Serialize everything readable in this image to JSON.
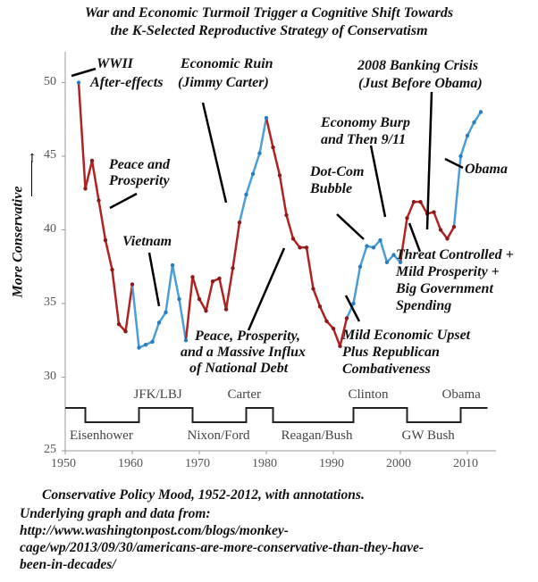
{
  "title_lines": [
    "War and Economic Turmoil Trigger a Cognitive Shift Towards",
    "the K-Selected Reproductive Strategy of Conservatism"
  ],
  "chart_data": {
    "type": "line",
    "title": "War and Economic Turmoil Trigger a Cognitive Shift Towards the K-Selected Reproductive Strategy of Conservatism",
    "ylabel": "More Conservative",
    "xlabel": "",
    "xlim": [
      1950,
      2013
    ],
    "ylim": [
      25,
      52
    ],
    "x_ticks": [
      1950,
      1960,
      1970,
      1980,
      1990,
      2000,
      2010
    ],
    "y_ticks": [
      25,
      30,
      35,
      40,
      45,
      50
    ],
    "grid": false,
    "x": [
      1952,
      1953,
      1954,
      1955,
      1956,
      1957,
      1958,
      1959,
      1960,
      1961,
      1962,
      1963,
      1964,
      1965,
      1966,
      1967,
      1968,
      1969,
      1970,
      1971,
      1972,
      1973,
      1974,
      1975,
      1976,
      1977,
      1978,
      1979,
      1980,
      1981,
      1982,
      1983,
      1984,
      1985,
      1986,
      1987,
      1988,
      1989,
      1990,
      1991,
      1992,
      1993,
      1994,
      1995,
      1996,
      1997,
      1998,
      1999,
      2000,
      2001,
      2002,
      2003,
      2004,
      2005,
      2006,
      2007,
      2008,
      2009,
      2010,
      2011,
      2012
    ],
    "series": [
      {
        "values": [
          50,
          42.8,
          44.7,
          42,
          39.3,
          37.3,
          33.6,
          33.1,
          36.3,
          32,
          32.2,
          32.4,
          33.7,
          34.4,
          37.6,
          35.3,
          32.5,
          36.8,
          35.3,
          34.5,
          36.5,
          36.7,
          34.6,
          37.4,
          40.5,
          42.4,
          43.8,
          45.2,
          47.6,
          45.6,
          43.7,
          41,
          39.4,
          38.8,
          38.8,
          36,
          34.8,
          33.8,
          33.3,
          32.1,
          34,
          35,
          37.5,
          38.9,
          38.8,
          39.3,
          37.8,
          38.3,
          37.8,
          40.8,
          41.9,
          41.9,
          41.1,
          41.2,
          40,
          39.4,
          40.2,
          45,
          46.4,
          47.3,
          48
        ]
      }
    ],
    "colors": {
      "democratic": "#4a9fd8",
      "republican": "#b22222"
    },
    "democratic_ranges": [
      [
        1952,
        1952
      ],
      [
        1961,
        1968
      ],
      [
        1977,
        1980
      ],
      [
        1993,
        2000
      ],
      [
        2009,
        2012
      ]
    ],
    "presidents": [
      {
        "label": "Eisenhower",
        "start": 1953,
        "end": 1961,
        "level": "low"
      },
      {
        "label": "JFK/LBJ",
        "start": 1961,
        "end": 1969,
        "level": "high"
      },
      {
        "label": "Nixon/Ford",
        "start": 1969,
        "end": 1977,
        "level": "low"
      },
      {
        "label": "Carter",
        "start": 1977,
        "end": 1981,
        "level": "high"
      },
      {
        "label": "Reagan/Bush",
        "start": 1981,
        "end": 1993,
        "level": "low"
      },
      {
        "label": "Clinton",
        "start": 1993,
        "end": 2001,
        "level": "high"
      },
      {
        "label": "GW Bush",
        "start": 2001,
        "end": 2009,
        "level": "low"
      },
      {
        "label": "Obama",
        "start": 2009,
        "end": 2013,
        "level": "high"
      }
    ]
  },
  "annotations": {
    "wwii": [
      "WWII",
      "After-effects"
    ],
    "economic_ruin": [
      "Economic Ruin",
      "(Jimmy Carter)"
    ],
    "peace_prosperity": [
      "Peace and",
      "Prosperity"
    ],
    "vietnam": [
      "Vietnam"
    ],
    "peace_debt": [
      "Peace, Prosperity,",
      "and a Massive Influx",
      "of National Debt"
    ],
    "banking_crisis": [
      "2008 Banking Crisis",
      "(Just Before Obama)"
    ],
    "economy_burp": [
      "Economy Burp",
      "and Then 9/11"
    ],
    "dotcom": [
      "Dot-Com",
      "Bubble"
    ],
    "obama": [
      "Obama"
    ],
    "threat_controlled": [
      "Threat Controlled +",
      "Mild Prosperity  +",
      "Big Government",
      "Spending"
    ],
    "mild_upset": [
      "Mild Economic Upset",
      "Plus Republican",
      "Combativeness"
    ]
  },
  "caption": "Conservative Policy Mood, 1952-2012, with annotations.",
  "source_lines": [
    "Underlying graph and data from:",
    "http://www.washingtonpost.com/blogs/monkey-",
    "cage/wp/2013/09/30/americans-are-more-conservative-than-they-have-",
    "been-in-decades/"
  ]
}
